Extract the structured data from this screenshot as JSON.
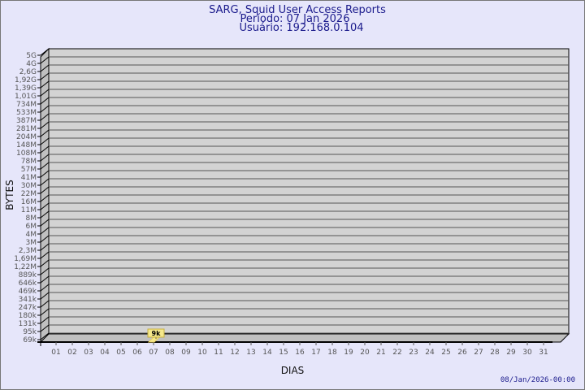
{
  "chart_data": {
    "type": "bar",
    "title": "SARG, Squid User Access Reports",
    "subtitle_lines": [
      "Período: 07 Jan 2026",
      "Usuário: 192.168.0.104"
    ],
    "xlabel": "DIAS",
    "ylabel": "BYTES",
    "y_scale": "log",
    "y_tick_labels": [
      "5G",
      "4G",
      "2,6G",
      "1,92G",
      "1,39G",
      "1,01G",
      "734M",
      "533M",
      "387M",
      "281M",
      "204M",
      "148M",
      "108M",
      "78M",
      "57M",
      "41M",
      "30M",
      "22M",
      "16M",
      "11M",
      "8M",
      "6M",
      "4M",
      "3M",
      "2,3M",
      "1,69M",
      "1,22M",
      "889k",
      "646k",
      "469k",
      "341k",
      "247k",
      "180k",
      "131k",
      "95k",
      "69k"
    ],
    "categories": [
      "01",
      "02",
      "03",
      "04",
      "05",
      "06",
      "07",
      "08",
      "09",
      "10",
      "11",
      "12",
      "13",
      "14",
      "15",
      "16",
      "17",
      "18",
      "19",
      "20",
      "21",
      "22",
      "23",
      "24",
      "25",
      "26",
      "27",
      "28",
      "29",
      "30",
      "31"
    ],
    "series": [
      {
        "values": [
          {
            "x": "07",
            "y": 9000,
            "label": "9k"
          }
        ]
      }
    ],
    "grid": true,
    "bar_color": "#f5e88c",
    "wall_color": "#d3d3d3",
    "background_color": "#e6e6fa"
  },
  "footer": {
    "timestamp": "08/Jan/2026-00:00"
  }
}
